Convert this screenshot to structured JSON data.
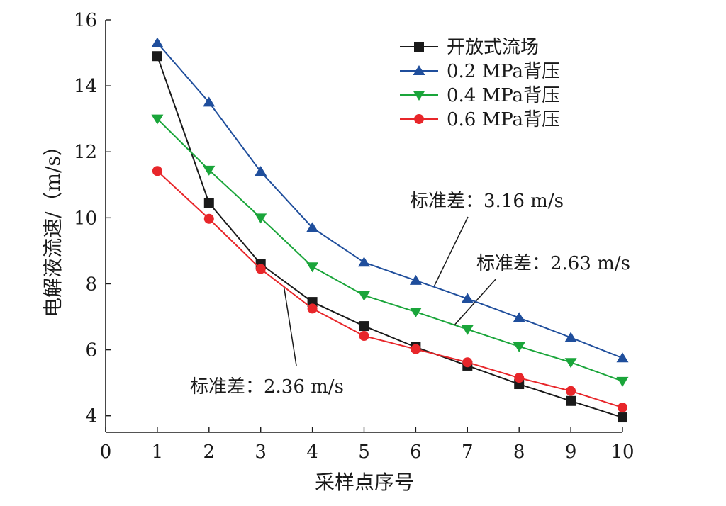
{
  "chart_data": {
    "type": "line",
    "xlabel": "采样点序号",
    "ylabel": "电解液流速/（m/s）",
    "xlim": [
      0,
      10
    ],
    "ylim": [
      3.5,
      16
    ],
    "xticks": [
      0,
      1,
      2,
      3,
      4,
      5,
      6,
      7,
      8,
      9,
      10
    ],
    "yticks": [
      4,
      6,
      8,
      10,
      12,
      14,
      16
    ],
    "grid": false,
    "legend_position": "top-right",
    "x": [
      1,
      2,
      3,
      4,
      5,
      6,
      7,
      8,
      9,
      10
    ],
    "series": [
      {
        "name": "开放式流场",
        "marker": "square",
        "color": "#1a1a1a",
        "values": [
          14.9,
          10.45,
          8.6,
          7.45,
          6.72,
          6.08,
          5.52,
          4.96,
          4.45,
          3.95
        ]
      },
      {
        "name": "0.2 MPa背压",
        "marker": "triangle-up",
        "color": "#1f4e9c",
        "values": [
          15.3,
          13.5,
          11.4,
          9.7,
          8.65,
          8.1,
          7.55,
          6.97,
          6.37,
          5.75
        ]
      },
      {
        "name": "0.4 MPa背压",
        "marker": "triangle-down",
        "color": "#1aa53a",
        "values": [
          13.0,
          11.45,
          10.0,
          8.52,
          7.65,
          7.15,
          6.62,
          6.1,
          5.62,
          5.05
        ]
      },
      {
        "name": "0.6 MPa背压",
        "marker": "circle",
        "color": "#e8262a",
        "values": [
          11.42,
          9.97,
          8.45,
          7.25,
          6.42,
          6.02,
          5.62,
          5.15,
          4.75,
          4.25
        ]
      }
    ],
    "annotations": [
      {
        "text": "标准差：3.16 m/s",
        "series": "0.2 MPa背压"
      },
      {
        "text": "标准差：2.63 m/s",
        "series": "0.4 MPa背压"
      },
      {
        "text": "标准差：2.36 m/s",
        "series": "0.6 MPa背压"
      }
    ]
  }
}
